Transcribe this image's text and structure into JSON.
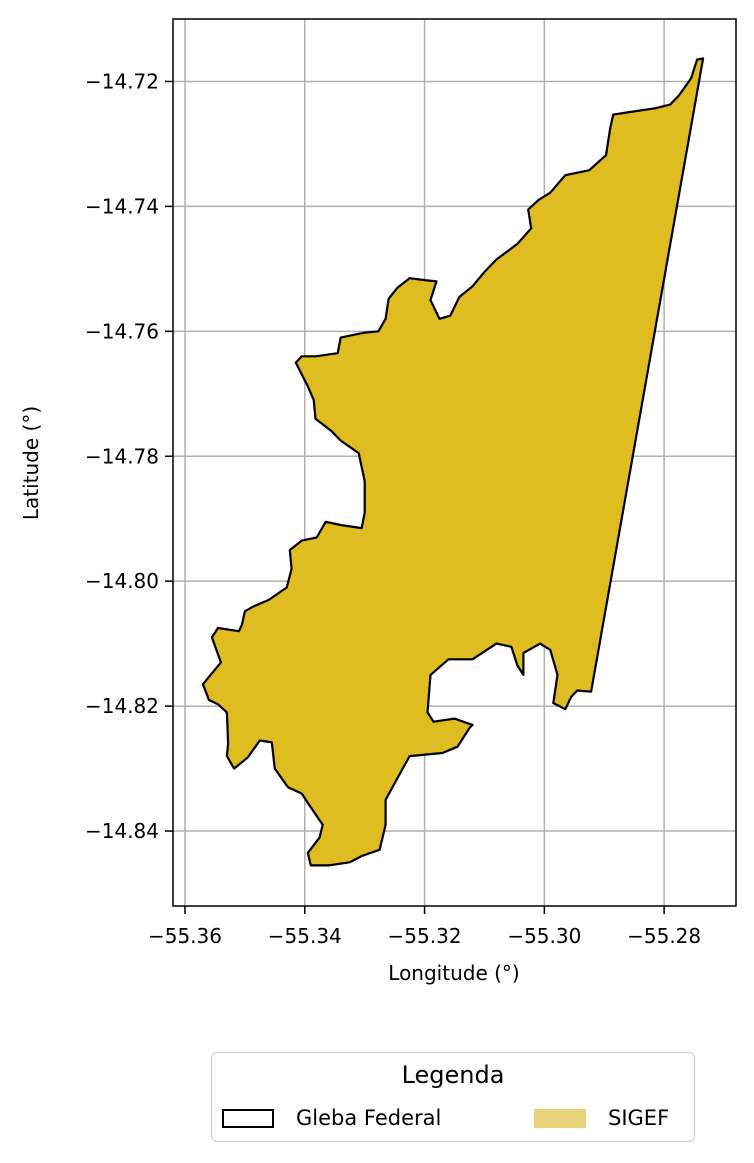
{
  "chart_data": {
    "type": "map",
    "xlabel": "Longitude (°)",
    "ylabel": "Latitude (°)",
    "xlim": [
      -55.362,
      -55.268
    ],
    "ylim": [
      -14.852,
      -14.71
    ],
    "x_ticks": [
      -55.36,
      -55.34,
      -55.32,
      -55.3,
      -55.28
    ],
    "x_tick_labels": [
      "−55.36",
      "−55.34",
      "−55.32",
      "−55.30",
      "−55.28"
    ],
    "y_ticks": [
      -14.72,
      -14.74,
      -14.76,
      -14.78,
      -14.8,
      -14.82,
      -14.84
    ],
    "y_tick_labels": [
      "−14.72",
      "−14.74",
      "−14.76",
      "−14.78",
      "−14.80",
      "−14.82",
      "−14.84"
    ],
    "grid": true,
    "polygon": {
      "fill_color": "#dfbc20",
      "edge_color": "#000000",
      "coordinates": [
        [
          -55.2735,
          -14.7163
        ],
        [
          -55.2745,
          -14.7165
        ],
        [
          -55.2755,
          -14.7195
        ],
        [
          -55.2775,
          -14.7222
        ],
        [
          -55.279,
          -14.7237
        ],
        [
          -55.2815,
          -14.7243
        ],
        [
          -55.285,
          -14.7248
        ],
        [
          -55.2885,
          -14.7253
        ],
        [
          -55.289,
          -14.7275
        ],
        [
          -55.2897,
          -14.7318
        ],
        [
          -55.2925,
          -14.7342
        ],
        [
          -55.2965,
          -14.735
        ],
        [
          -55.299,
          -14.7378
        ],
        [
          -55.301,
          -14.739
        ],
        [
          -55.3027,
          -14.7405
        ],
        [
          -55.3022,
          -14.7435
        ],
        [
          -55.3045,
          -14.746
        ],
        [
          -55.308,
          -14.7485
        ],
        [
          -55.31,
          -14.7505
        ],
        [
          -55.312,
          -14.7528
        ],
        [
          -55.3142,
          -14.7545
        ],
        [
          -55.3157,
          -14.7575
        ],
        [
          -55.3175,
          -14.758
        ],
        [
          -55.319,
          -14.755
        ],
        [
          -55.318,
          -14.752
        ],
        [
          -55.32,
          -14.7518
        ],
        [
          -55.3225,
          -14.7515
        ],
        [
          -55.3245,
          -14.753
        ],
        [
          -55.326,
          -14.7548
        ],
        [
          -55.3265,
          -14.758
        ],
        [
          -55.3277,
          -14.76
        ],
        [
          -55.33,
          -14.7602
        ],
        [
          -55.334,
          -14.761
        ],
        [
          -55.3345,
          -14.7635
        ],
        [
          -55.3382,
          -14.764
        ],
        [
          -55.3405,
          -14.764
        ],
        [
          -55.3415,
          -14.765
        ],
        [
          -55.3395,
          -14.7688
        ],
        [
          -55.3385,
          -14.771
        ],
        [
          -55.3382,
          -14.774
        ],
        [
          -55.3355,
          -14.776
        ],
        [
          -55.334,
          -14.7775
        ],
        [
          -55.331,
          -14.7795
        ],
        [
          -55.33,
          -14.784
        ],
        [
          -55.33,
          -14.789
        ],
        [
          -55.3305,
          -14.7915
        ],
        [
          -55.334,
          -14.791
        ],
        [
          -55.3365,
          -14.7905
        ],
        [
          -55.338,
          -14.793
        ],
        [
          -55.3405,
          -14.7935
        ],
        [
          -55.3425,
          -14.795
        ],
        [
          -55.3422,
          -14.798
        ],
        [
          -55.343,
          -14.801
        ],
        [
          -55.346,
          -14.803
        ],
        [
          -55.3485,
          -14.804
        ],
        [
          -55.35,
          -14.8048
        ],
        [
          -55.3505,
          -14.807
        ],
        [
          -55.351,
          -14.808
        ],
        [
          -55.3545,
          -14.8075
        ],
        [
          -55.3555,
          -14.809
        ],
        [
          -55.354,
          -14.813
        ],
        [
          -55.357,
          -14.8165
        ],
        [
          -55.356,
          -14.819
        ],
        [
          -55.3545,
          -14.8197
        ],
        [
          -55.353,
          -14.821
        ],
        [
          -55.3528,
          -14.826
        ],
        [
          -55.353,
          -14.828
        ],
        [
          -55.3518,
          -14.83
        ],
        [
          -55.3495,
          -14.8282
        ],
        [
          -55.3475,
          -14.8255
        ],
        [
          -55.3455,
          -14.8258
        ],
        [
          -55.345,
          -14.83
        ],
        [
          -55.3428,
          -14.833
        ],
        [
          -55.3405,
          -14.834
        ],
        [
          -55.3395,
          -14.8355
        ],
        [
          -55.337,
          -14.839
        ],
        [
          -55.3375,
          -14.841
        ],
        [
          -55.3395,
          -14.8435
        ],
        [
          -55.339,
          -14.8455
        ],
        [
          -55.336,
          -14.8455
        ],
        [
          -55.3325,
          -14.845
        ],
        [
          -55.3305,
          -14.844
        ],
        [
          -55.3275,
          -14.843
        ],
        [
          -55.3265,
          -14.839
        ],
        [
          -55.3265,
          -14.835
        ],
        [
          -55.3245,
          -14.8315
        ],
        [
          -55.3225,
          -14.828
        ],
        [
          -55.317,
          -14.8275
        ],
        [
          -55.3145,
          -14.8265
        ],
        [
          -55.3125,
          -14.8235
        ],
        [
          -55.312,
          -14.823
        ],
        [
          -55.315,
          -14.822
        ],
        [
          -55.3185,
          -14.8225
        ],
        [
          -55.3195,
          -14.821
        ],
        [
          -55.319,
          -14.815
        ],
        [
          -55.316,
          -14.8125
        ],
        [
          -55.312,
          -14.8125
        ],
        [
          -55.308,
          -14.81
        ],
        [
          -55.3055,
          -14.8105
        ],
        [
          -55.3045,
          -14.8135
        ],
        [
          -55.3035,
          -14.815
        ],
        [
          -55.3035,
          -14.8115
        ],
        [
          -55.3007,
          -14.81
        ],
        [
          -55.299,
          -14.811
        ],
        [
          -55.2978,
          -14.815
        ],
        [
          -55.2985,
          -14.8195
        ],
        [
          -55.2965,
          -14.8205
        ],
        [
          -55.2955,
          -14.8185
        ],
        [
          -55.2945,
          -14.8175
        ],
        [
          -55.2922,
          -14.8177
        ]
      ]
    }
  },
  "legend": {
    "title": "Legenda",
    "items": [
      {
        "label": "Gleba Federal",
        "style": "outline",
        "color": "#000000"
      },
      {
        "label": "SIGEF",
        "style": "fill",
        "color": "#e8d27a"
      }
    ]
  }
}
